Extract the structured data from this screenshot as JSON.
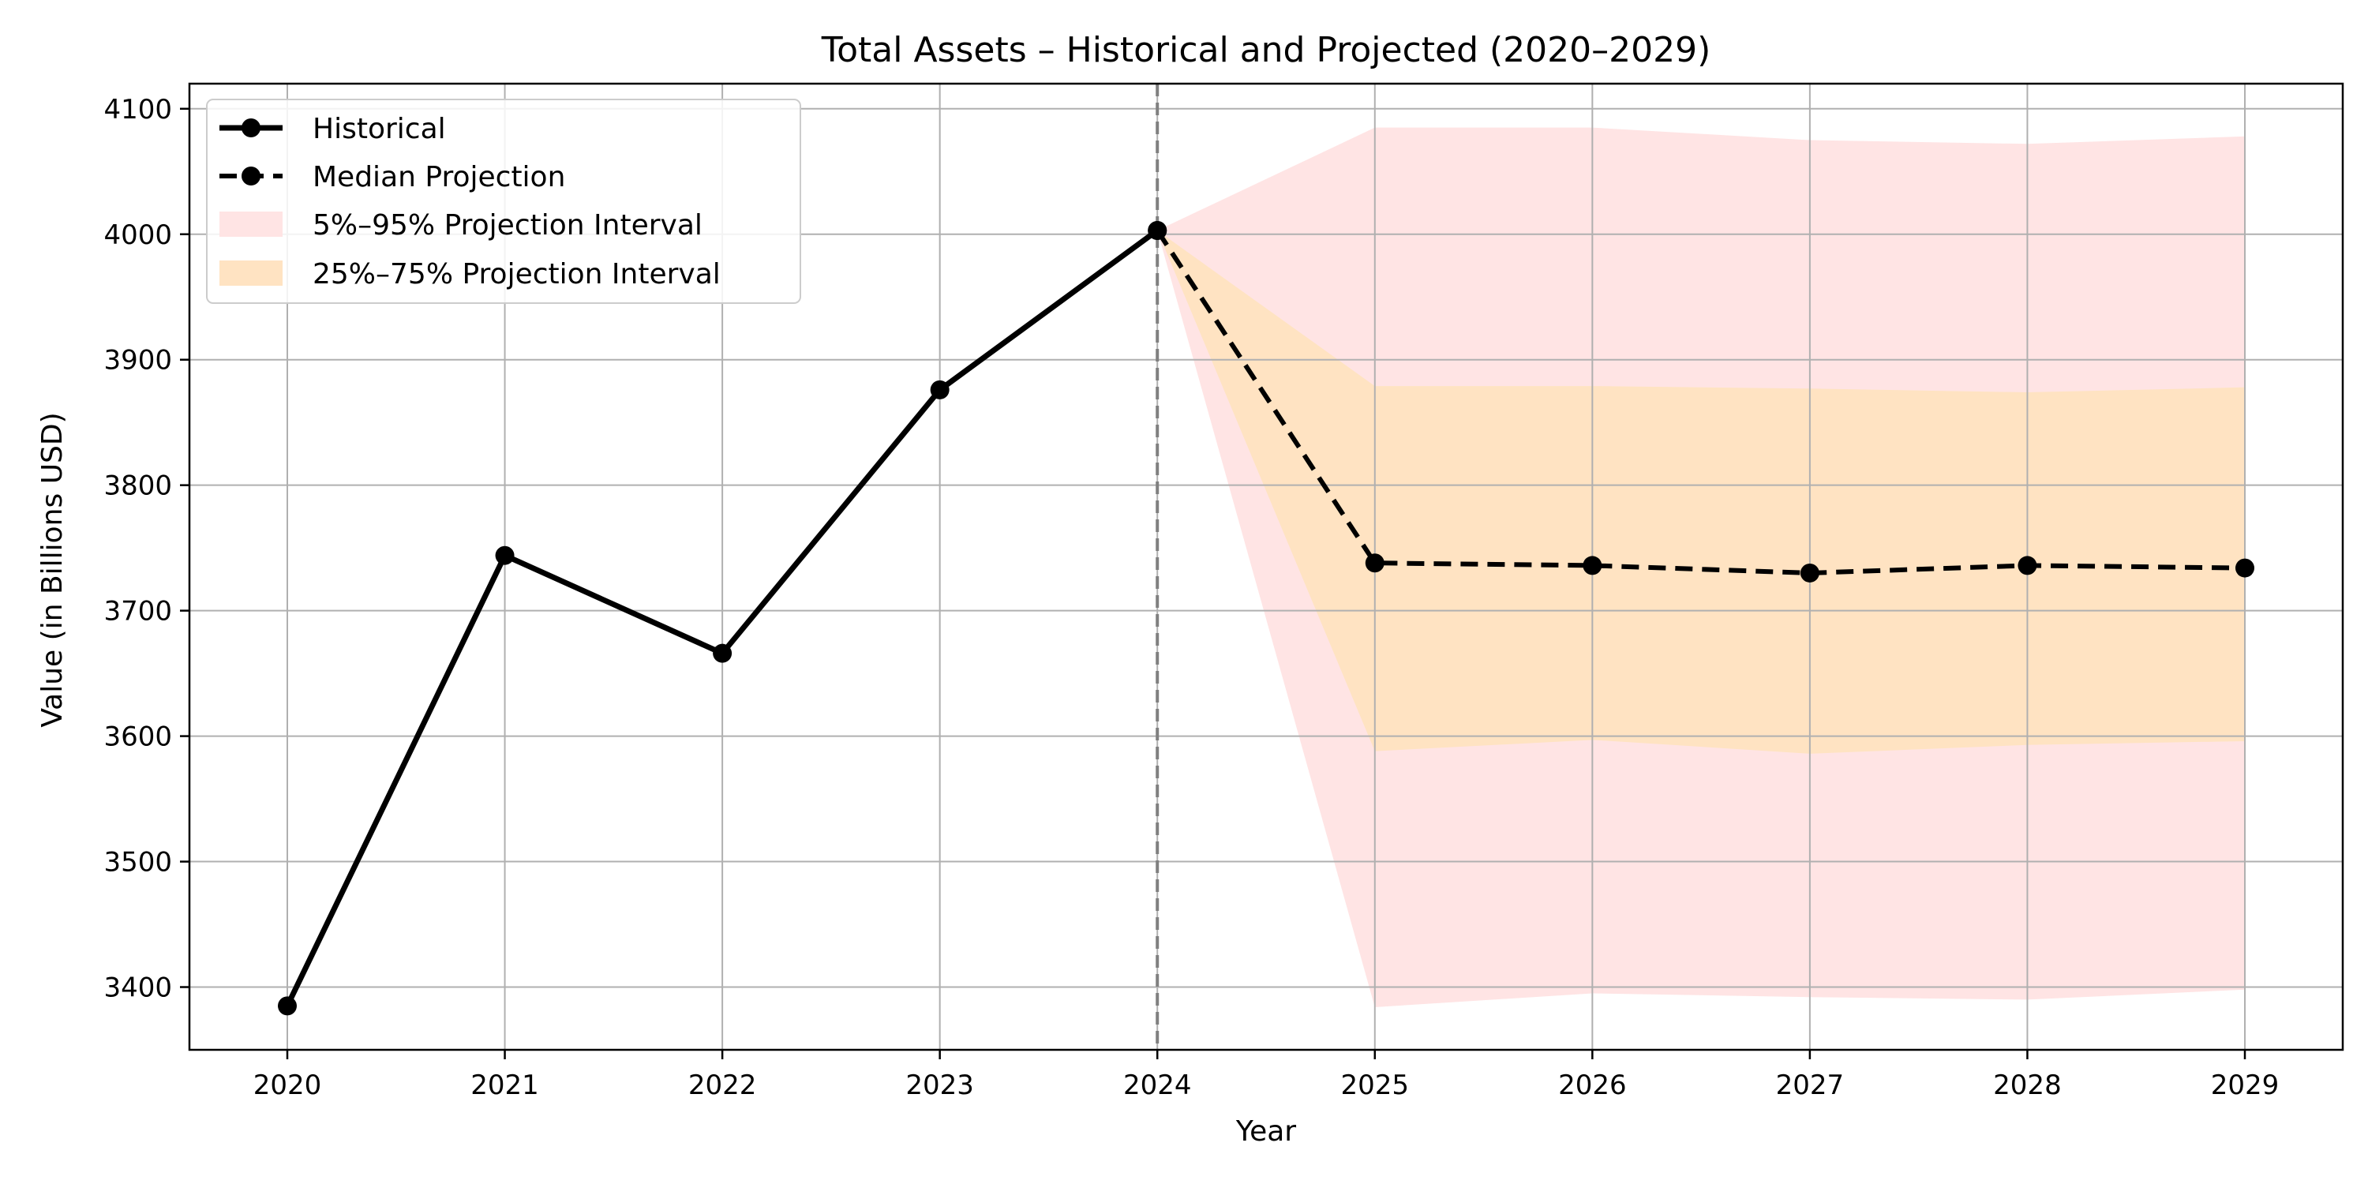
{
  "chart_data": {
    "type": "line",
    "title": "Total Assets – Historical and Projected (2020–2029)",
    "xlabel": "Year",
    "ylabel": "Value (in Billions USD)",
    "xlim": [
      2019.55,
      2029.45
    ],
    "ylim": [
      3350,
      4120
    ],
    "x_ticks": [
      2020,
      2021,
      2022,
      2023,
      2024,
      2025,
      2026,
      2027,
      2028,
      2029
    ],
    "y_ticks": [
      3400,
      3500,
      3600,
      3700,
      3800,
      3900,
      4000,
      4100
    ],
    "grid": true,
    "legend_position": "top-left",
    "divider_x": 2024,
    "series": [
      {
        "name": "Historical",
        "style": "solid",
        "color": "#000000",
        "x": [
          2020,
          2021,
          2022,
          2023,
          2024
        ],
        "values": [
          3385,
          3744,
          3666,
          3876,
          4003
        ]
      },
      {
        "name": "Median Projection",
        "style": "dashed",
        "color": "#000000",
        "x": [
          2024,
          2025,
          2026,
          2027,
          2028,
          2029
        ],
        "values": [
          4003,
          3738,
          3736,
          3730,
          3736,
          3734
        ]
      }
    ],
    "bands": [
      {
        "name": "5%–95% Projection Interval",
        "color": "#ffe4e4",
        "x": [
          2024,
          2025,
          2026,
          2027,
          2028,
          2029
        ],
        "lower": [
          4003,
          3384,
          3395,
          3392,
          3390,
          3398
        ],
        "upper": [
          4003,
          4085,
          4085,
          4075,
          4072,
          4078
        ]
      },
      {
        "name": "25%–75% Projection Interval",
        "color": "#ffe3c2",
        "x": [
          2024,
          2025,
          2026,
          2027,
          2028,
          2029
        ],
        "lower": [
          4003,
          3588,
          3597,
          3586,
          3593,
          3596
        ],
        "upper": [
          4003,
          3879,
          3879,
          3877,
          3874,
          3878
        ]
      }
    ]
  }
}
